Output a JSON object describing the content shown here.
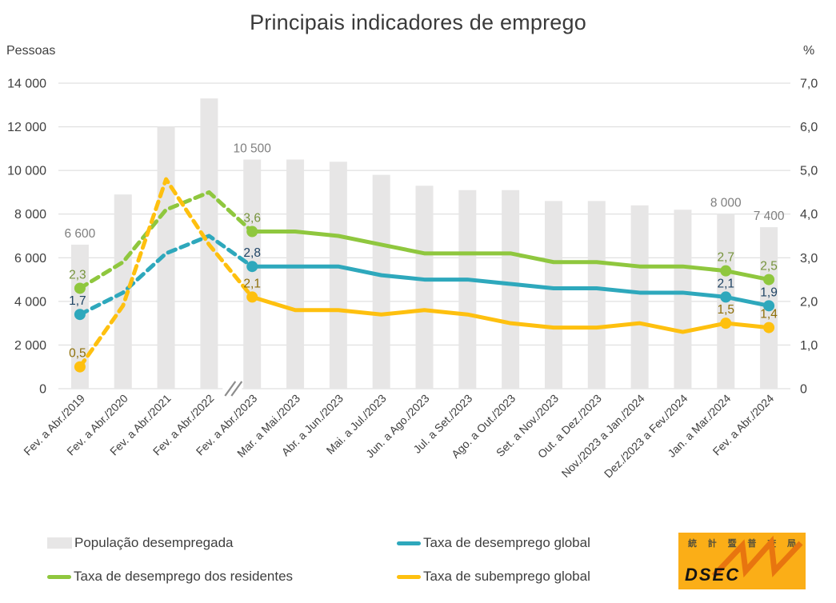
{
  "title": "Principais indicadores de emprego",
  "left_axis_unit": "Pessoas",
  "right_axis_unit": "%",
  "legend": {
    "items": [
      {
        "label": "População desempregada",
        "type": "bar",
        "color": "#E7E6E6"
      },
      {
        "label": "Taxa de desemprego global",
        "type": "line",
        "color": "#2EA8BC"
      },
      {
        "label": "Taxa de desemprego dos residentes",
        "type": "line",
        "color": "#8FC73E"
      },
      {
        "label": "Taxa de subemprego global",
        "type": "line",
        "color": "#FEC00F"
      }
    ]
  },
  "logo": {
    "acronym": "DSEC",
    "chinese_name": "統計暨普查局",
    "bg_color": "#FBAE17",
    "zigzag_color": "#E8750F"
  },
  "chart_data": {
    "type": "bar",
    "subtype": "combo bar + line, dual axis",
    "title": "Principais indicadores de emprego",
    "categories": [
      "Fev. a Abr./2019",
      "Fev. a Abr./2020",
      "Fev. a Abr./2021",
      "Fev. a Abr./2022",
      "Fev. a Abr./2023",
      "Mar. a Mai./2023",
      "Abr. a Jun./2023",
      "Mai. a Jul./2023",
      "Jun. a Ago./2023",
      "Jul. a Set./2023",
      "Ago. a Out./2023",
      "Set. a Nov./2023",
      "Out. a Dez./2023",
      "Nov./2023 a Jan./2024",
      "Dez./2023 a Fev./2024",
      "Jan. a Mar./2024",
      "Fev. a Abr./2024"
    ],
    "left_axis": {
      "unit": "Pessoas",
      "min": 0,
      "max": 14000,
      "ticks": [
        "14 000",
        "12 000",
        "10 000",
        "8 000",
        "6 000",
        "4 000",
        "2 000",
        "0"
      ]
    },
    "right_axis": {
      "unit": "%",
      "min": 0,
      "max": 7.0,
      "ticks": [
        "7,0",
        "6,0",
        "5,0",
        "4,0",
        "3,0",
        "2,0",
        "1,0",
        "0"
      ]
    },
    "grid": "horizontal-only",
    "gridline_color": "#D9D9D9",
    "tick_label_color": "#3F3F3F",
    "dashed_segment_end_index": 4,
    "axis_break_after_index": 3,
    "bars": {
      "name": "População desempregada",
      "axis": "left",
      "color": "#E7E6E6",
      "label_color": "#7F7F7F",
      "values": [
        6600,
        8900,
        12000,
        13300,
        10500,
        10500,
        10400,
        9800,
        9300,
        9100,
        9100,
        8600,
        8600,
        8400,
        8200,
        8000,
        7400
      ],
      "value_labels": [
        {
          "index": 0,
          "text": "6 600"
        },
        {
          "index": 4,
          "text": "10 500"
        },
        {
          "index": 15,
          "text": "8 000"
        },
        {
          "index": 16,
          "text": "7 400"
        }
      ]
    },
    "series": [
      {
        "name": "Taxa de desemprego dos residentes",
        "axis": "right",
        "color": "#8FC73E",
        "label_color": "#76933C",
        "values": [
          2.3,
          2.9,
          4.1,
          4.5,
          3.6,
          3.6,
          3.5,
          3.3,
          3.1,
          3.1,
          3.1,
          2.9,
          2.9,
          2.8,
          2.8,
          2.7,
          2.5
        ],
        "point_labels": [
          {
            "index": 0,
            "text": "2,3"
          },
          {
            "index": 4,
            "text": "3,6"
          },
          {
            "index": 15,
            "text": "2,7"
          },
          {
            "index": 16,
            "text": "2,5"
          }
        ]
      },
      {
        "name": "Taxa de desemprego global",
        "axis": "right",
        "color": "#2EA8BC",
        "label_color": "#1F4364",
        "values": [
          1.7,
          2.2,
          3.1,
          3.5,
          2.8,
          2.8,
          2.8,
          2.6,
          2.5,
          2.5,
          2.4,
          2.3,
          2.3,
          2.2,
          2.2,
          2.1,
          1.9
        ],
        "point_labels": [
          {
            "index": 0,
            "text": "1,7"
          },
          {
            "index": 4,
            "text": "2,8"
          },
          {
            "index": 15,
            "text": "2,1"
          },
          {
            "index": 16,
            "text": "1,9"
          }
        ]
      },
      {
        "name": "Taxa de subemprego global",
        "axis": "right",
        "color": "#FEC00F",
        "label_color": "#8E6F08",
        "values": [
          0.5,
          1.9,
          4.8,
          3.3,
          2.1,
          1.8,
          1.8,
          1.7,
          1.8,
          1.7,
          1.5,
          1.4,
          1.4,
          1.5,
          1.3,
          1.5,
          1.4
        ],
        "point_labels": [
          {
            "index": 0,
            "text": "0,5"
          },
          {
            "index": 4,
            "text": "2,1"
          },
          {
            "index": 15,
            "text": "1,5"
          },
          {
            "index": 16,
            "text": "1,4"
          }
        ]
      }
    ],
    "legend_position": "bottom"
  }
}
